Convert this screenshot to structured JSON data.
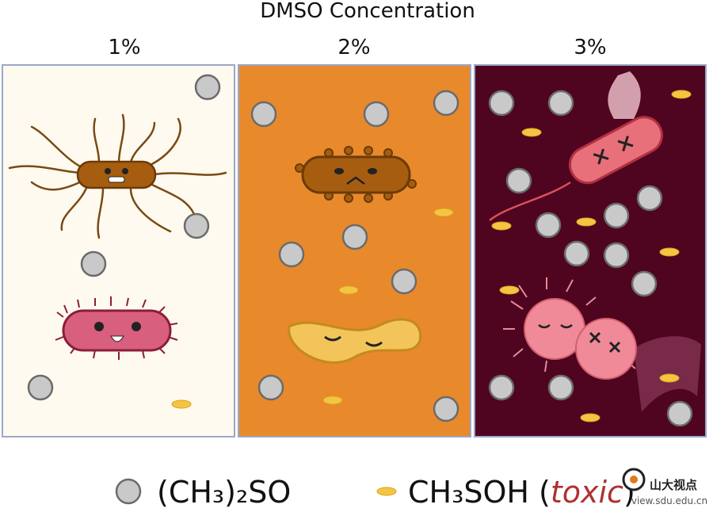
{
  "header": {
    "title": "DMSO Concentration"
  },
  "panels": [
    {
      "label": "1%"
    },
    {
      "label": "2%"
    },
    {
      "label": "3%"
    }
  ],
  "legend": {
    "items": [
      {
        "label": "(CH₃)₂SO"
      },
      {
        "label": "CH₃SOH (",
        "emphasis": "toxic",
        "close": ")"
      }
    ]
  },
  "watermark": {
    "name": "山大视点",
    "url": "view.sdu.edu.cn"
  }
}
